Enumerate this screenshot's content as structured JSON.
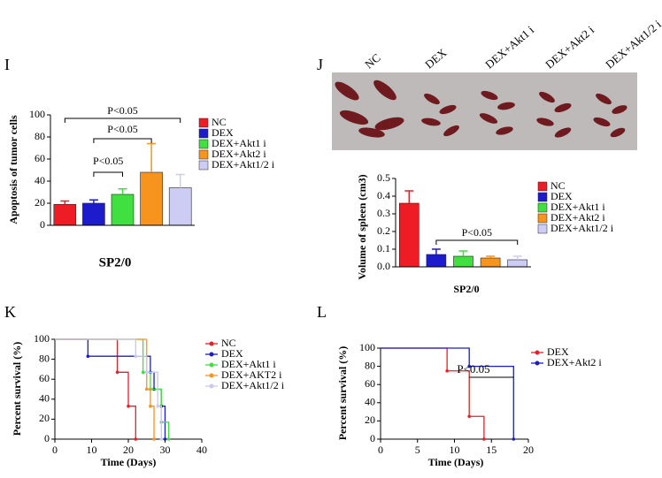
{
  "chart_data": [
    {
      "type": "bar",
      "panel": "I",
      "ylabel": "Apoptosis of tumor cells",
      "xlabel": "SP2/0",
      "categories": [
        "NC",
        "DEX",
        "DEX+Akt1 i",
        "DEX+Akt2 i",
        "DEX+Akt1/2 i"
      ],
      "values": [
        19,
        20,
        28,
        48,
        34
      ],
      "errors": [
        3,
        3,
        5,
        26,
        12
      ],
      "colors": [
        "#ee1c25",
        "#1c1ccc",
        "#3fe03f",
        "#f7941d",
        "#ccccf5"
      ],
      "ylim": [
        0,
        100
      ],
      "yticks": [
        0,
        20,
        40,
        60,
        80,
        100
      ],
      "annotations": [
        "P<0.05",
        "P<0.05",
        "P<0.05"
      ]
    },
    {
      "type": "bar",
      "panel": "J",
      "ylabel": "Volume of spleen (cm3)",
      "xlabel": "SP2/0",
      "categories": [
        "NC",
        "DEX",
        "DEX+Akt1 i",
        "DEX+Akt2 i",
        "DEX+Akt1/2 i"
      ],
      "values": [
        0.36,
        0.07,
        0.06,
        0.05,
        0.04
      ],
      "errors": [
        0.07,
        0.03,
        0.03,
        0.01,
        0.02
      ],
      "colors": [
        "#ee1c25",
        "#1c1ccc",
        "#3fe03f",
        "#f7941d",
        "#ccccf5"
      ],
      "ylim": [
        0,
        0.5
      ],
      "yticks": [
        {
          "value": 0,
          "label": "0.0"
        },
        0.1,
        0.2,
        0.3,
        0.4,
        0.5
      ],
      "annotations": [
        "P<0.05"
      ]
    },
    {
      "type": "step",
      "panel": "K",
      "ylabel": "Percent survival (%)",
      "xlabel": "Time (Days)",
      "xlim": [
        0,
        40
      ],
      "xticks": [
        0,
        10,
        20,
        30,
        40
      ],
      "ylim": [
        0,
        100
      ],
      "yticks": [
        0,
        20,
        40,
        60,
        80,
        100
      ],
      "series": [
        {
          "name": "NC",
          "color": "#ee1c25",
          "x": [
            0,
            17,
            20,
            22
          ],
          "values": [
            100,
            67,
            33,
            0
          ]
        },
        {
          "name": "DEX",
          "color": "#1c1ccc",
          "x": [
            0,
            9,
            26,
            27,
            29,
            30
          ],
          "values": [
            100,
            83,
            67,
            50,
            33,
            0
          ]
        },
        {
          "name": "DEX+Akt1 i",
          "color": "#3fe03f",
          "x": [
            0,
            24,
            26,
            29,
            31
          ],
          "values": [
            100,
            67,
            50,
            17,
            0
          ]
        },
        {
          "name": "DEX+AKT2 i",
          "color": "#f7941d",
          "x": [
            0,
            25,
            26,
            27
          ],
          "values": [
            100,
            50,
            33,
            0
          ]
        },
        {
          "name": "DEX+Akt1/2 i",
          "color": "#c8c8f0",
          "x": [
            0,
            22,
            25,
            28,
            29
          ],
          "values": [
            100,
            83,
            67,
            33,
            0
          ]
        }
      ]
    },
    {
      "type": "step",
      "panel": "L",
      "ylabel": "Percent survival (%)",
      "xlabel": "Time (Days)",
      "xlim": [
        0,
        20
      ],
      "xticks": [
        0,
        5,
        10,
        15,
        20
      ],
      "ylim": [
        0,
        100
      ],
      "yticks": [
        0,
        20,
        40,
        60,
        80,
        100
      ],
      "series": [
        {
          "name": "DEX",
          "color": "#ee1c25",
          "x": [
            0,
            9,
            12,
            14
          ],
          "values": [
            100,
            75,
            25,
            0
          ]
        },
        {
          "name": "DEX+Akt2 i",
          "color": "#1c1ccc",
          "x": [
            0,
            12,
            18
          ],
          "values": [
            100,
            80,
            0
          ]
        }
      ],
      "annotations": [
        "P<0.05"
      ]
    }
  ]
}
